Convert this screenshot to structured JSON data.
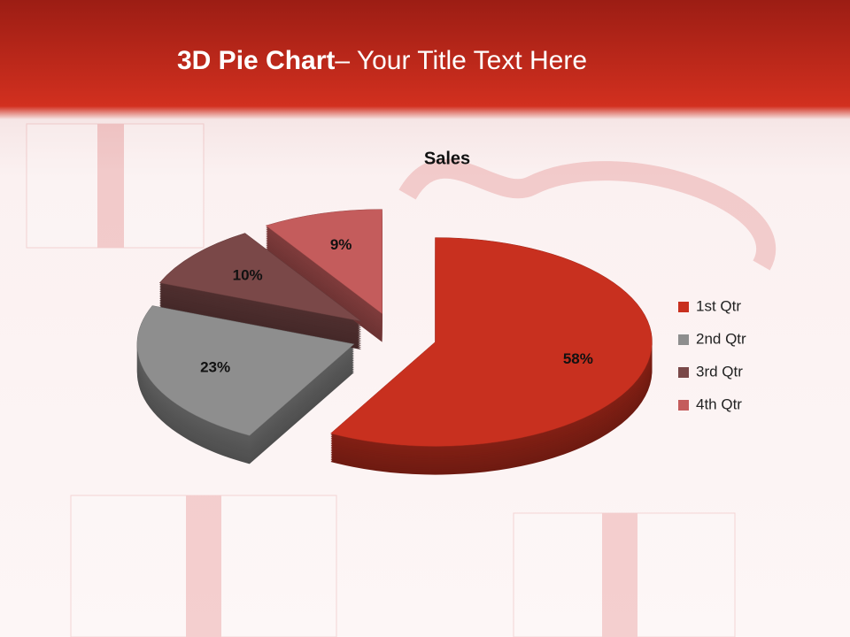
{
  "slide_title": {
    "bold": "3D Pie Chart",
    "rest": "– Your Title Text Here"
  },
  "chart_data": {
    "type": "pie3d",
    "title": "Sales",
    "categories": [
      "1st Qtr",
      "2nd Qtr",
      "3rd Qtr",
      "4th Qtr"
    ],
    "values": [
      58,
      23,
      10,
      9
    ],
    "value_labels": [
      "58%",
      "23%",
      "10%",
      "9%"
    ],
    "colors": [
      "#c8301f",
      "#8e8e8e",
      "#7a4848",
      "#c45c5c"
    ],
    "legend": "right"
  }
}
